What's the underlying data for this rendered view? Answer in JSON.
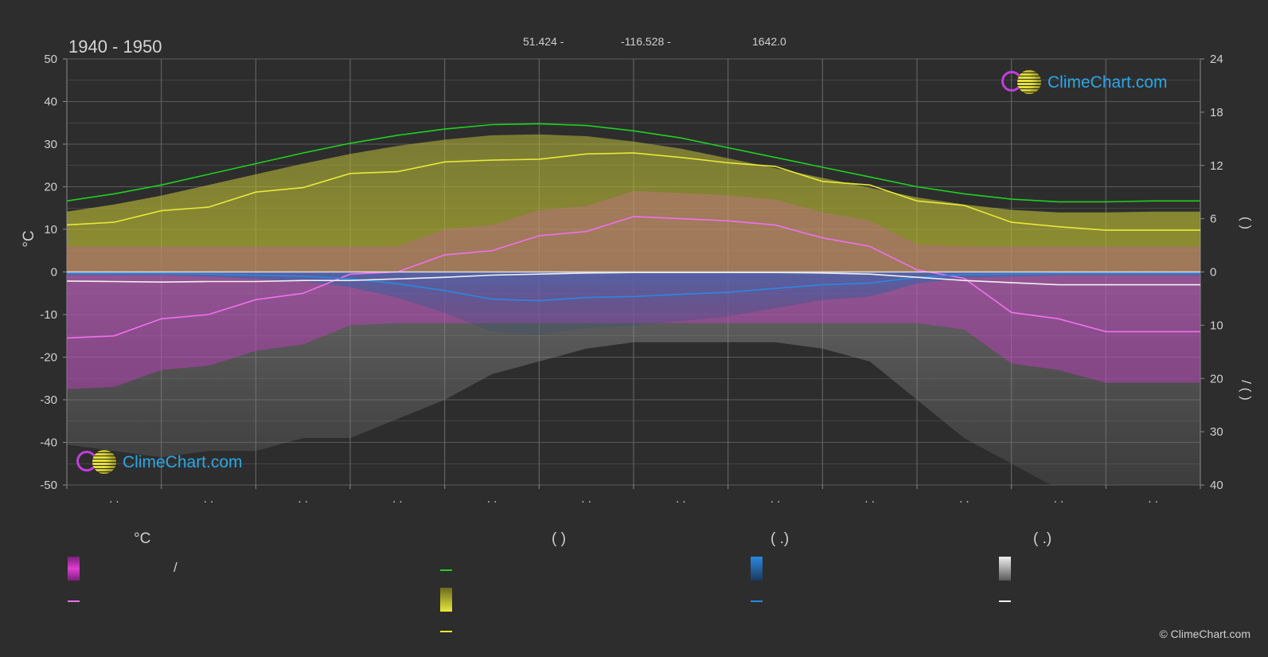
{
  "header": {
    "title": "1940 - 1950",
    "latitude": "51.424 -",
    "longitude": "-116.528 -",
    "elevation": "1642.0"
  },
  "logo": {
    "text": "ClimeChart.com"
  },
  "copyright": "© ClimeChart.com",
  "legend": {
    "col1": {
      "header": "°C",
      "row1": "/"
    },
    "col2": {
      "header": "(          )"
    },
    "col3": {
      "header": "(    .)"
    },
    "col4": {
      "header": "(    .)"
    }
  },
  "colors": {
    "background": "#2d2d2d",
    "max_daylight": "#1fd01f",
    "sunshine": "#e8e83a",
    "temperature": "#f070f0",
    "temperature_band": "#e23cd4",
    "rain": "#2a88e0",
    "snow": "#f0f0f0"
  },
  "chart_data": {
    "type": "line",
    "title": "1940 - 1950",
    "ylabel": "°C",
    "ylim": [
      -50,
      50
    ],
    "yticks": [
      "50",
      "40",
      "30",
      "20",
      "10",
      "0",
      "-10",
      "-20",
      "-30",
      "-40",
      "-50"
    ],
    "y2_top_range": [
      0,
      24
    ],
    "y2_top_ticks": [
      "24",
      "18",
      "12",
      "6",
      "0"
    ],
    "y2_top_label": "(     )",
    "y2_bottom_range": [
      0,
      40
    ],
    "y2_bottom_ticks": [
      "10",
      "20",
      "30",
      "40"
    ],
    "y2_bottom_label": "/     (   )",
    "x_labels": [
      ". .",
      ". .",
      ". .",
      ". .",
      ". .",
      ". .",
      ". .",
      ". .",
      ". .",
      ". .",
      ". .",
      ". ."
    ],
    "x": [
      0,
      0.5,
      1,
      1.5,
      2,
      2.5,
      3,
      3.5,
      4,
      4.5,
      5,
      5.5,
      6,
      6.5,
      7,
      7.5,
      8,
      8.5,
      9,
      9.5,
      10,
      10.5,
      11,
      11.5,
      12
    ],
    "series": [
      {
        "axis": "hours_top",
        "values": [
          8.0,
          8.8,
          9.8,
          11.0,
          12.2,
          13.4,
          14.5,
          15.4,
          16.1,
          16.6,
          16.7,
          16.5,
          15.9,
          15.1,
          14.0,
          12.9,
          11.8,
          10.7,
          9.6,
          8.8,
          8.2,
          7.9,
          7.9,
          8.0,
          8.0
        ]
      },
      {
        "axis": "hours_top",
        "values": [
          5.3,
          5.6,
          6.9,
          7.3,
          9.0,
          9.5,
          11.1,
          11.3,
          12.4,
          12.6,
          12.7,
          13.3,
          13.4,
          12.9,
          12.3,
          11.9,
          10.2,
          9.8,
          8.0,
          7.5,
          5.6,
          5.1,
          4.7,
          4.7,
          4.7
        ]
      },
      {
        "axis": "temperature",
        "values": [
          -15.5,
          -15.0,
          -11.0,
          -10.0,
          -6.5,
          -5.0,
          -0.5,
          0.0,
          4.0,
          5.0,
          8.5,
          9.5,
          13.0,
          12.5,
          12.0,
          11.0,
          8.0,
          6.0,
          0.5,
          -1.5,
          -9.5,
          -11.0,
          -14.0,
          -14.0,
          -14.0
        ]
      },
      {
        "axis": "precip_bottom",
        "values": [
          0.3,
          0.3,
          0.3,
          0.4,
          0.6,
          0.8,
          1.3,
          2.2,
          3.5,
          5.1,
          5.4,
          4.8,
          4.6,
          4.2,
          3.8,
          3.1,
          2.4,
          2.1,
          1.0,
          0.5,
          0.4,
          0.3,
          0.3,
          0.3,
          0.3
        ]
      },
      {
        "axis": "precip_bottom",
        "values": [
          1.7,
          1.8,
          1.9,
          1.8,
          1.8,
          1.6,
          1.6,
          1.3,
          1.0,
          0.6,
          0.4,
          0.2,
          0.1,
          0.1,
          0.1,
          0.1,
          0.2,
          0.4,
          1.0,
          1.6,
          2.0,
          2.4,
          2.4,
          2.4,
          2.4
        ]
      }
    ]
  }
}
